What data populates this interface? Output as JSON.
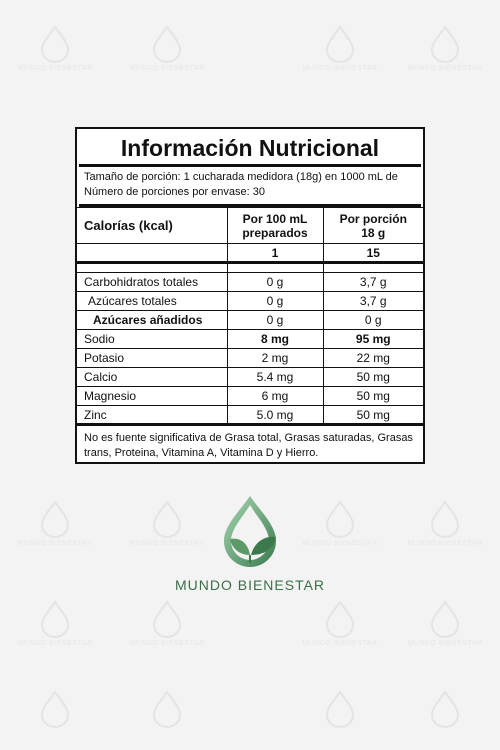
{
  "watermark_text": "MUNDO BIENESTAR",
  "label": {
    "title": "Información Nutricional",
    "serving_size": "Tamaño de porción: 1 cucharada medidora (18g) en 1000 mL de",
    "servings_per_container": "Número de porciones por envase: 30",
    "calories_label": "Calorías (kcal)",
    "col1_header_line1": "Por 100 mL",
    "col1_header_line2": "preparados",
    "col2_header_line1": "Por porción",
    "col2_header_line2": "18 g",
    "calories_col1": "1",
    "calories_col2": "15",
    "rows": [
      {
        "name": "Carbohidratos totales",
        "per100": "0 g",
        "perServing": "3,7 g"
      },
      {
        "name": "Azúcares totales",
        "per100": "0 g",
        "perServing": "3,7 g"
      },
      {
        "name": "Azúcares añadidos",
        "per100": "0 g",
        "perServing": "0 g"
      },
      {
        "name": "Sodio",
        "per100": "8 mg",
        "perServing": "95 mg"
      },
      {
        "name": "Potasio",
        "per100": "2 mg",
        "perServing": "22 mg"
      },
      {
        "name": "Calcio",
        "per100": "5.4 mg",
        "perServing": "50 mg"
      },
      {
        "name": "Magnesio",
        "per100": "6 mg",
        "perServing": "50 mg"
      },
      {
        "name": "Zinc",
        "per100": "5.0 mg",
        "perServing": "50 mg"
      }
    ],
    "footnote": "No es fuente significativa de Grasa total, Grasas saturadas, Grasas trans, Proteina, Vitamina A, Vitamina D y Hierro."
  },
  "brand": {
    "name_part1": "MUNDO",
    "name_part2": "BIENESTAR",
    "logo_icon": "drop-with-leaves-icon",
    "color_light": "#8bc79a",
    "color_dark": "#3c6e47"
  }
}
